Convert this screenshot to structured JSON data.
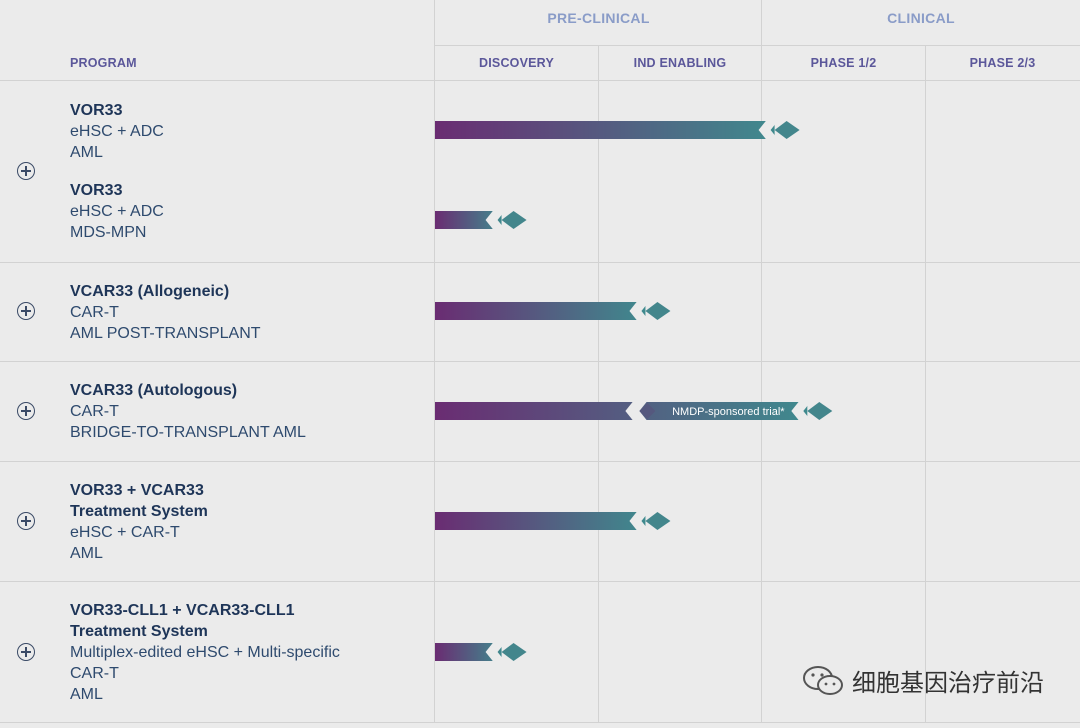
{
  "header": {
    "program_label": "PROGRAM",
    "groups": [
      {
        "label": "PRE-CLINICAL"
      },
      {
        "label": "CLINICAL"
      }
    ],
    "stages": [
      {
        "label": "DISCOVERY"
      },
      {
        "label": "IND ENABLING"
      },
      {
        "label": "PHASE 1/2"
      },
      {
        "label": "PHASE 2/3"
      }
    ]
  },
  "colors": {
    "bar_start": "#6a2c72",
    "bar_end": "#3f8a8e",
    "title": "#1e3558",
    "header": "#5b579a"
  },
  "programs": [
    {
      "lines": [
        "VOR33"
      ],
      "subs": [
        "eHSC + ADC",
        "AML"
      ],
      "progress_stages": 2.23
    },
    {
      "lines": [
        "VOR33"
      ],
      "subs": [
        "eHSC + ADC",
        "MDS-MPN"
      ],
      "progress_stages": 0.56
    },
    {
      "lines": [
        "VCAR33 (Allogeneic)"
      ],
      "subs": [
        "CAR-T",
        "AML POST-TRANSPLANT"
      ],
      "progress_stages": 1.44
    },
    {
      "lines": [
        "VCAR33 (Autologous)"
      ],
      "subs": [
        "CAR-T",
        "BRIDGE-TO-TRANSPLANT AML"
      ],
      "progress_stages": 1.25,
      "extension": {
        "label": "NMDP-sponsored trial*",
        "progress_stages": 2.43
      }
    },
    {
      "lines": [
        "VOR33 + VCAR33",
        "Treatment System"
      ],
      "subs": [
        "eHSC + CAR-T",
        "AML"
      ],
      "progress_stages": 1.44
    },
    {
      "lines": [
        "VOR33-CLL1 + VCAR33-CLL1",
        "Treatment System"
      ],
      "subs": [
        "Multiplex-edited eHSC + Multi-specific",
        "CAR-T",
        "AML"
      ],
      "progress_stages": 0.56
    }
  ],
  "watermark": {
    "text": "细胞基因治疗前沿",
    "icon": "wechat-icon"
  }
}
